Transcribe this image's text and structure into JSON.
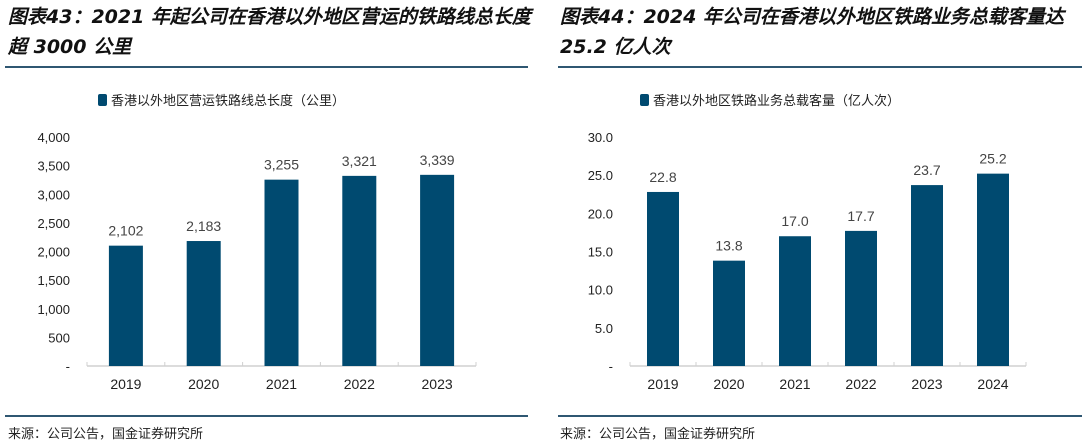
{
  "charts": [
    {
      "title": "图表43：2021 年起公司在香港以外地区营运的铁路线总长度超 3000 公里",
      "source": "来源：公司公告，国金证券研究所"
    },
    {
      "title": "图表44：2024 年公司在香港以外地区铁路业务总载客量达 25.2 亿人次",
      "source": "来源：公司公告，国金证券研究所"
    }
  ],
  "chart_data": [
    {
      "type": "bar",
      "title": "图表43：2021 年起公司在香港以外地区营运的铁路线总长度超 3000 公里",
      "legend": "香港以外地区营运铁路线总长度（公里）",
      "legend_position": "top-left",
      "categories": [
        "2019",
        "2020",
        "2021",
        "2022",
        "2023"
      ],
      "values": [
        2102,
        2183,
        3255,
        3321,
        3339
      ],
      "value_labels": [
        "2,102",
        "2,183",
        "3,255",
        "3,321",
        "3,339"
      ],
      "yticks": [
        "-",
        "500",
        "1,000",
        "1,500",
        "2,000",
        "2,500",
        "3,000",
        "3,500",
        "4,000"
      ],
      "ylim": [
        0,
        4000
      ],
      "color": "#004a70"
    },
    {
      "type": "bar",
      "title": "图表44：2024 年公司在香港以外地区铁路业务总载客量达 25.2 亿人次",
      "legend": "香港以外地区铁路业务总载客量（亿人次）",
      "legend_position": "top-left",
      "categories": [
        "2019",
        "2020",
        "2021",
        "2022",
        "2023",
        "2024"
      ],
      "values": [
        22.8,
        13.8,
        17.0,
        17.7,
        23.7,
        25.2
      ],
      "value_labels": [
        "22.8",
        "13.8",
        "17.0",
        "17.7",
        "23.7",
        "25.2"
      ],
      "yticks": [
        "-",
        "5.0",
        "10.0",
        "15.0",
        "20.0",
        "25.0",
        "30.0"
      ],
      "ylim": [
        0,
        30
      ],
      "color": "#004a70"
    }
  ]
}
